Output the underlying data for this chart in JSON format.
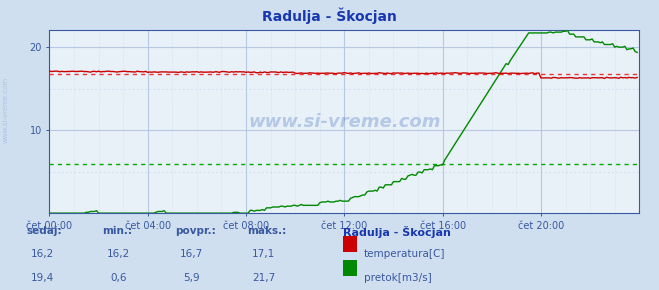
{
  "title": "Radulja - Škocjan",
  "bg_color": "#d0dff0",
  "plot_bg_color": "#e8f0f8",
  "grid_color_major": "#b8c8e0",
  "x_label_color": "#3858a0",
  "y_label_color": "#3858a0",
  "title_color": "#1838b0",
  "axis_color": "#3858a0",
  "temp_color": "#cc0000",
  "flow_color": "#008800",
  "avg_temp_color": "#ee3333",
  "avg_flow_color": "#00aa00",
  "n_points": 288,
  "temp_avg": 16.7,
  "flow_avg": 5.9,
  "ylim_temp": [
    15,
    22
  ],
  "ylim": [
    0,
    22
  ],
  "yticks": [
    10,
    20
  ],
  "xtick_labels": [
    "čet 00:00",
    "čet 04:00",
    "čet 08:00",
    "čet 12:00",
    "čet 16:00",
    "čet 20:00"
  ],
  "xtick_positions": [
    0,
    48,
    96,
    144,
    192,
    240
  ],
  "footer_labels": [
    "sedaj:",
    "min.:",
    "povpr.:",
    "maks.:"
  ],
  "footer_values_temp": [
    "16,2",
    "16,2",
    "16,7",
    "17,1"
  ],
  "footer_values_flow": [
    "19,4",
    "0,6",
    "5,9",
    "21,7"
  ],
  "legend_title": "Radulja - Škocjan",
  "legend_items": [
    "temperatura[C]",
    "pretok[m3/s]"
  ],
  "legend_colors": [
    "#cc0000",
    "#008800"
  ]
}
